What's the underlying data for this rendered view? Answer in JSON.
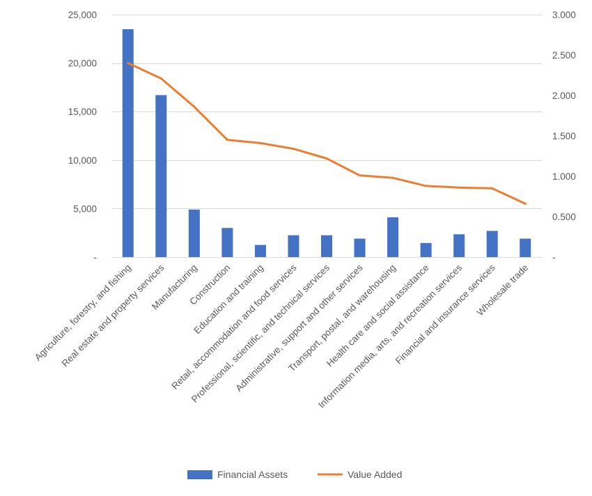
{
  "chart_data": {
    "type": "bar",
    "categories": [
      "Agriculture, forestry, and fishing",
      "Real estate and property services",
      "Manufacturing",
      "Construction",
      "Education and training",
      "Retail, accommodation and food services",
      "Professional, scientific, and technical services",
      "Administrative, support and other services",
      "Transport, postal, and warehousing",
      "Health care and social assistance",
      "Information media, arts, and recreation services",
      "Financial and insurance services",
      "Wholesale trade"
    ],
    "series": [
      {
        "name": "Financial Assets",
        "type": "bar",
        "axis": "left",
        "color": "#4472C4",
        "values": [
          23500,
          16700,
          4900,
          3000,
          1250,
          2250,
          2250,
          1900,
          4100,
          1450,
          2350,
          2700,
          1900
        ]
      },
      {
        "name": "Value Added",
        "type": "line",
        "axis": "right",
        "color": "#ED7D31",
        "values": [
          2.4,
          2.21,
          1.86,
          1.45,
          1.41,
          1.34,
          1.22,
          1.01,
          0.98,
          0.88,
          0.86,
          0.85,
          0.66
        ]
      }
    ],
    "y_left": {
      "ylim": [
        0,
        25000
      ],
      "ticks": [
        "-",
        "5,000",
        "10,000",
        "15,000",
        "20,000",
        "25,000"
      ]
    },
    "y_right": {
      "ylim": [
        0,
        3.0
      ],
      "ticks": [
        "-",
        "0.500",
        "1.000",
        "1.500",
        "2.000",
        "2.500",
        "3.000"
      ]
    },
    "grid": true,
    "legend_position": "bottom"
  }
}
